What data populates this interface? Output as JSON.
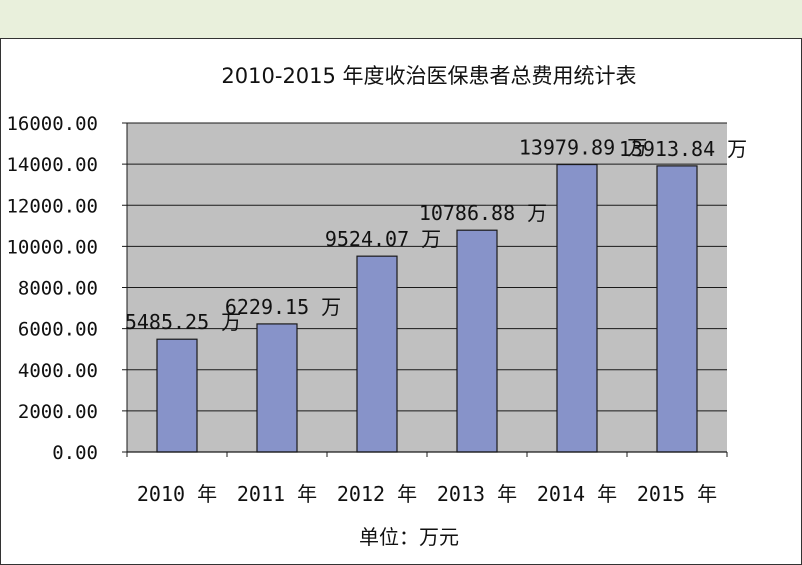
{
  "chart_data": {
    "type": "bar",
    "title": "2010-2015 年度收治医保患者总费用统计表",
    "xlabel": "单位：万元",
    "ylabel": "",
    "categories": [
      "2010 年",
      "2011 年",
      "2012 年",
      "2013 年",
      "2014 年",
      "2015 年"
    ],
    "values": [
      5485.25,
      6229.15,
      9524.07,
      10786.88,
      13979.89,
      13913.84
    ],
    "data_labels": [
      "5485.25 万",
      "6229.15 万",
      "9524.07 万",
      "10786.88 万",
      "13979.89 万",
      "13913.84 万"
    ],
    "y_ticks": [
      "0.00",
      "2000.00",
      "4000.00",
      "6000.00",
      "8000.00",
      "10000.00",
      "12000.00",
      "14000.00",
      "16000.00"
    ],
    "ylim": [
      0,
      16000
    ],
    "grid": true,
    "legend": "none",
    "colors": {
      "plot_background": "#c0c0c0",
      "bar_fill": "#8793c9",
      "bar_stroke": "#1a1a1a",
      "gridline": "#1a1a1a",
      "page_background": "#e9f0dc"
    }
  }
}
